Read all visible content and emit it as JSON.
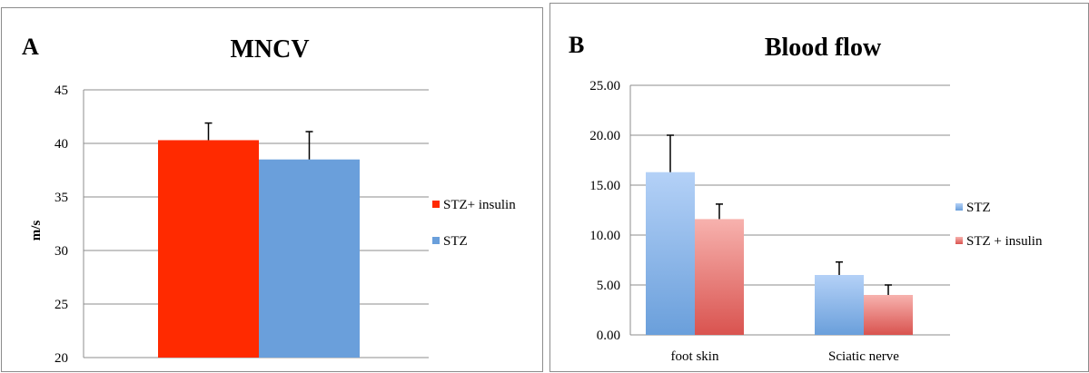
{
  "chart_data": [
    {
      "type": "bar",
      "panel_letter": "A",
      "title": "MNCV",
      "ylabel": "m/s",
      "xlabel": "",
      "ylim": [
        20,
        45
      ],
      "yticks": [
        "20",
        "25",
        "30",
        "35",
        "40",
        "45"
      ],
      "tick_values": [
        20,
        25,
        30,
        35,
        40,
        45
      ],
      "categories": [
        ""
      ],
      "grid": true,
      "legend_position": "right",
      "series": [
        {
          "name": "STZ+ insulin",
          "values": [
            40.3
          ],
          "errors": [
            1.6
          ],
          "color": "#ff2a00"
        },
        {
          "name": "STZ",
          "values": [
            38.5
          ],
          "errors": [
            2.6
          ],
          "color": "#6a9fdb"
        }
      ]
    },
    {
      "type": "bar",
      "panel_letter": "B",
      "title": "Blood flow",
      "ylabel": "",
      "xlabel": "",
      "ylim": [
        0,
        25
      ],
      "yticks": [
        "0.00",
        "5.00",
        "10.00",
        "15.00",
        "20.00",
        "25.00"
      ],
      "tick_values": [
        0,
        5,
        10,
        15,
        20,
        25
      ],
      "categories": [
        "foot skin",
        "Sciatic nerve"
      ],
      "grid": true,
      "legend_position": "right",
      "series": [
        {
          "name": "STZ",
          "values": [
            16.3,
            6.0
          ],
          "errors": [
            3.7,
            1.3
          ],
          "color": "#6a9fdb",
          "color_light": "#b4d1f7"
        },
        {
          "name": "STZ + insulin",
          "values": [
            11.6,
            4.0
          ],
          "errors": [
            1.5,
            1.0
          ],
          "color": "#d9534f",
          "color_light": "#f7b2ae"
        }
      ]
    }
  ]
}
